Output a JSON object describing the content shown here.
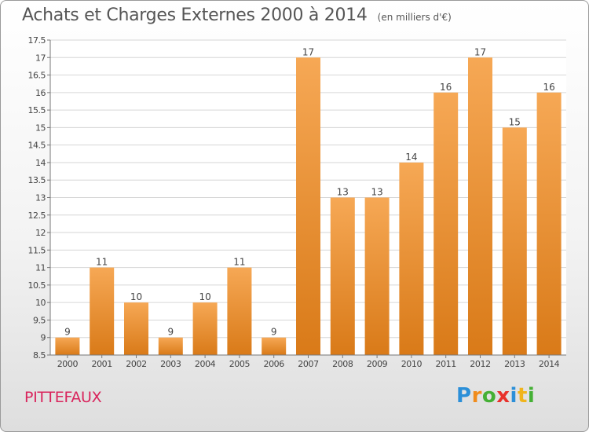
{
  "header": {
    "title": "Achats et Charges Externes 2000 à 2014",
    "unit": "(en milliers d'€)"
  },
  "footer": {
    "commune": "PITTEFAUX",
    "logo_letters": [
      {
        "ch": "P",
        "color": "#2b8fd8"
      },
      {
        "ch": "r",
        "color": "#f08c1c"
      },
      {
        "ch": "o",
        "color": "#45b035"
      },
      {
        "ch": "x",
        "color": "#e8312b"
      },
      {
        "ch": "i",
        "color": "#2b8fd8"
      },
      {
        "ch": "t",
        "color": "#f0b41c"
      },
      {
        "ch": "i",
        "color": "#45b035"
      }
    ]
  },
  "colors": {
    "bar_light": "#f6a855",
    "bar_dark": "#d97a18",
    "grid": "#d6d6d6",
    "axis": "#777777",
    "text": "#444444",
    "commune": "#d9245c"
  },
  "chart_data": {
    "type": "bar",
    "title": "Achats et Charges Externes 2000 à 2014",
    "categories": [
      "2000",
      "2001",
      "2002",
      "2003",
      "2004",
      "2005",
      "2006",
      "2007",
      "2008",
      "2009",
      "2010",
      "2011",
      "2012",
      "2013",
      "2014"
    ],
    "values": [
      9,
      11,
      10,
      9,
      10,
      11,
      9,
      17,
      13,
      13,
      14,
      16,
      17,
      15,
      16
    ],
    "data_labels": [
      "9",
      "11",
      "10",
      "9",
      "10",
      "11",
      "9",
      "17",
      "13",
      "13",
      "14",
      "16",
      "17",
      "15",
      "16"
    ],
    "ylim": [
      8.5,
      17.5
    ],
    "yticks": [
      "8.5",
      "9",
      "9.5",
      "10",
      "10.5",
      "11",
      "11.5",
      "12",
      "12.5",
      "13",
      "13.5",
      "14",
      "14.5",
      "15",
      "15.5",
      "16",
      "16.5",
      "17",
      "17.5"
    ],
    "xlabel": "",
    "ylabel": "",
    "grid": true,
    "legend": "none"
  }
}
